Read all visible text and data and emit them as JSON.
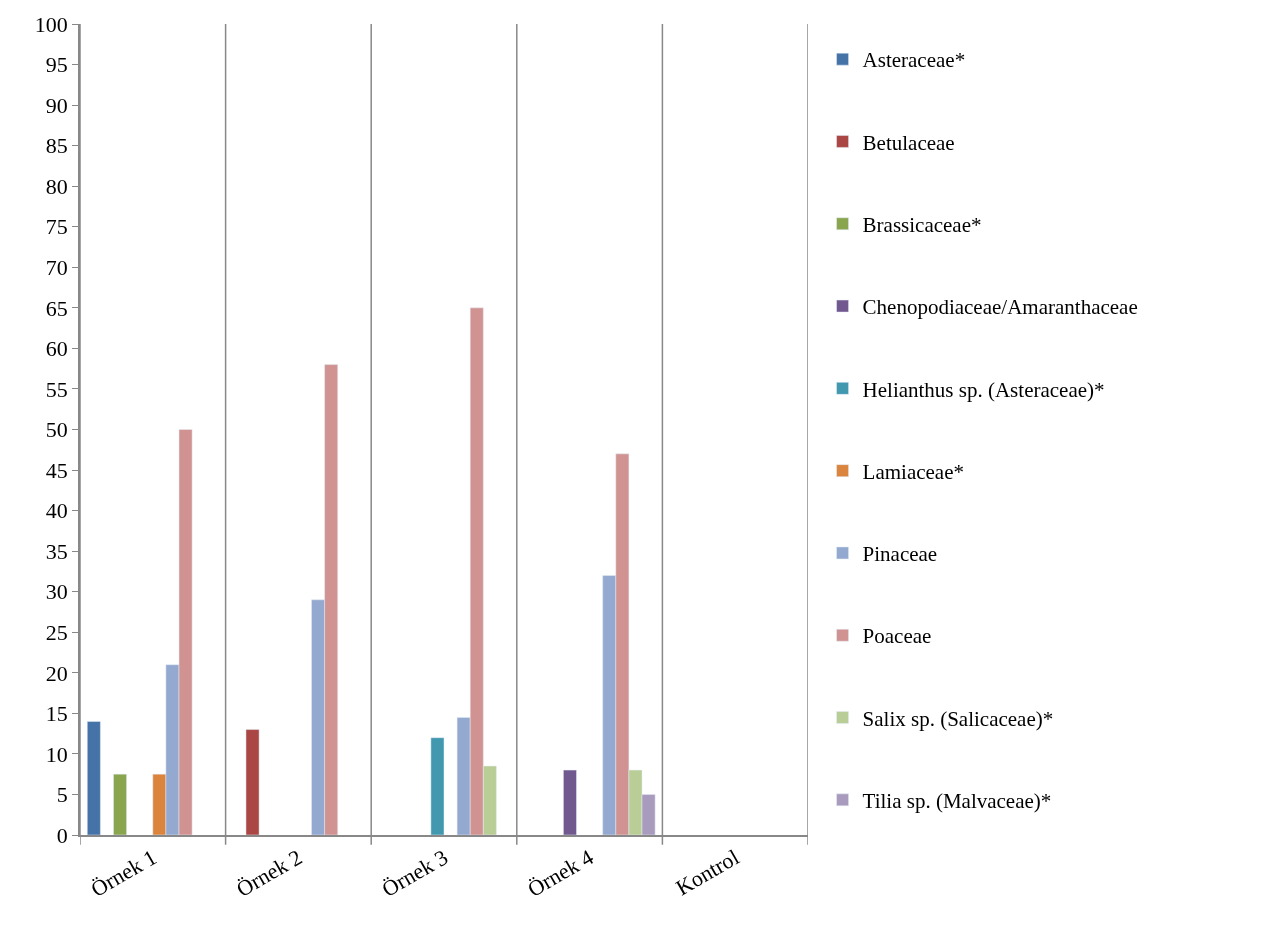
{
  "chart_data": {
    "type": "bar",
    "categories": [
      "Örnek 1",
      "Örnek 2",
      "Örnek 3",
      "Örnek 4",
      "Kontrol"
    ],
    "series": [
      {
        "name": "Asteraceae*",
        "color": "#4572a7",
        "values": [
          14,
          null,
          null,
          null,
          null
        ]
      },
      {
        "name": "Betulaceae",
        "color": "#aa4643",
        "values": [
          null,
          13,
          null,
          null,
          null
        ]
      },
      {
        "name": "Brassicaceae*",
        "color": "#89a54e",
        "values": [
          7.5,
          null,
          null,
          null,
          null
        ]
      },
      {
        "name": "Chenopodiaceae/Amaranthaceae",
        "color": "#71588f",
        "values": [
          null,
          null,
          null,
          8,
          null
        ]
      },
      {
        "name": "Helianthus sp. (Asteraceae)*",
        "color": "#4198af",
        "values": [
          null,
          null,
          12,
          null,
          null
        ]
      },
      {
        "name": "Lamiaceae*",
        "color": "#db843d",
        "values": [
          7.5,
          null,
          null,
          null,
          null
        ]
      },
      {
        "name": "Pinaceae",
        "color": "#93a9cf",
        "values": [
          21,
          29,
          14.5,
          32,
          null
        ]
      },
      {
        "name": "Poaceae",
        "color": "#d19392",
        "values": [
          50,
          58,
          65,
          47,
          null
        ]
      },
      {
        "name": "Salix sp. (Salicaceae)*",
        "color": "#b9cd96",
        "values": [
          null,
          null,
          8.5,
          8,
          null
        ]
      },
      {
        "name": "Tilia sp. (Malvaceae)*",
        "color": "#a99bbd",
        "values": [
          null,
          null,
          null,
          5,
          null
        ]
      }
    ],
    "ylim": [
      0,
      100
    ],
    "yticks": [
      0,
      5,
      10,
      15,
      20,
      25,
      30,
      35,
      40,
      45,
      50,
      55,
      60,
      65,
      70,
      75,
      80,
      85,
      90,
      95,
      100
    ],
    "grid": "x",
    "legend": "right"
  }
}
